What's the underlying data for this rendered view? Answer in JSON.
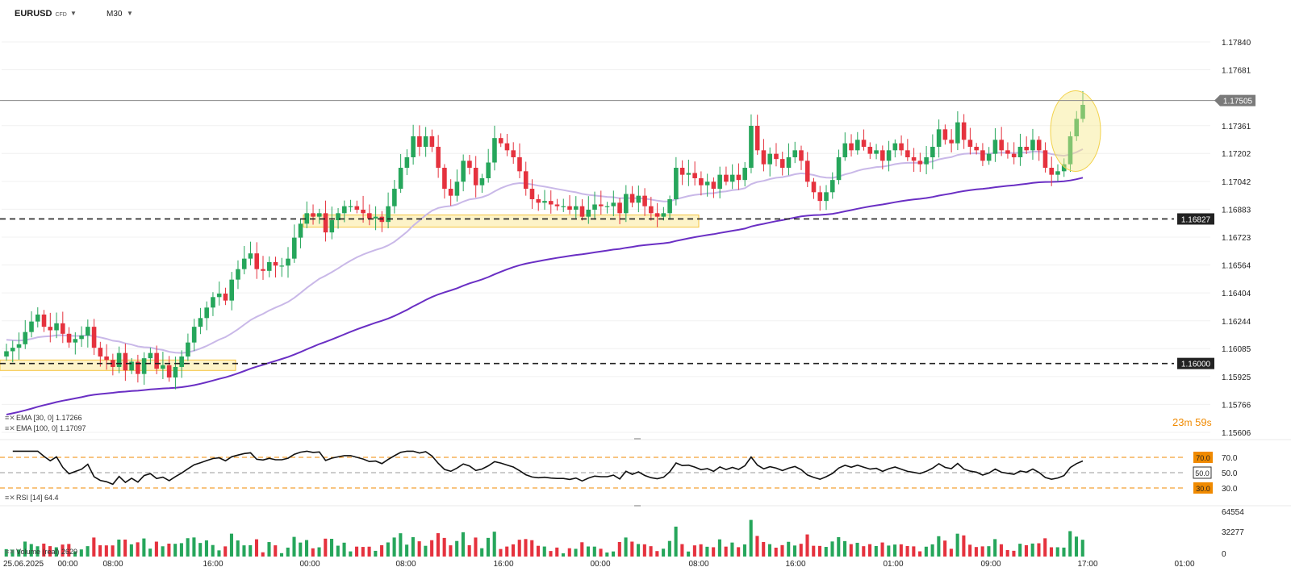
{
  "header": {
    "symbol": "EURUSD",
    "symbol_tag": "CFD",
    "timeframe": "M30"
  },
  "colors": {
    "up": "#26a65b",
    "down": "#e5323e",
    "ema30": "#c9b8e8",
    "ema100": "#6a2fc4",
    "rsi": "#111111",
    "level_box": "#f5c542",
    "highlight": "#f7e98a",
    "last_price_bg": "#7a7a7a",
    "level_label_bg": "#222222",
    "rsi_band": "#f08a00"
  },
  "indicators": {
    "ema30_label": "EMA  [30, 0]  1.17266",
    "ema100_label": "EMA  [100, 0]  1.17097",
    "rsi_label": "RSI  [14]  64.4",
    "volume_label": "Volume  (real)  2629"
  },
  "countdown": {
    "min": "23",
    "min_unit": "m",
    "sec": "59",
    "sec_unit": "s"
  },
  "chart_data": [
    {
      "type": "candlestick",
      "symbol": "EURUSD",
      "timeframe": "M30",
      "ylim": [
        1.15606,
        1.1784
      ],
      "y_ticks": [
        "1.17840",
        "1.17681",
        "1.17505",
        "1.17361",
        "1.17202",
        "1.17042",
        "1.16883",
        "1.16723",
        "1.16564",
        "1.16404",
        "1.16244",
        "1.16085",
        "1.15925",
        "1.15766",
        "1.15606"
      ],
      "x_ticks": [
        "25.06.2025",
        "00:00",
        "08:00",
        "16:00",
        "00:00",
        "08:00",
        "16:00",
        "00:00",
        "08:00",
        "16:00",
        "01:00",
        "09:00",
        "17:00",
        "01:00"
      ],
      "last_price": 1.17505,
      "levels": [
        1.16827,
        1.16
      ],
      "level_labels": [
        "1.16827",
        "1.16000"
      ],
      "support_zones": [
        {
          "from": 1.1596,
          "to": 1.1602
        },
        {
          "from": 1.1678,
          "to": 1.1685
        }
      ],
      "ohlc_close_path": [
        1.1607,
        1.1609,
        1.1611,
        1.1618,
        1.1624,
        1.1628,
        1.1621,
        1.1619,
        1.1623,
        1.1617,
        1.1612,
        1.1614,
        1.1616,
        1.1621,
        1.1609,
        1.1604,
        1.1602,
        1.1598,
        1.1606,
        1.1596,
        1.1601,
        1.1594,
        1.1603,
        1.1606,
        1.1597,
        1.1599,
        1.1592,
        1.1598,
        1.1604,
        1.1612,
        1.1621,
        1.1626,
        1.1632,
        1.1638,
        1.164,
        1.1636,
        1.1648,
        1.1654,
        1.166,
        1.1663,
        1.1654,
        1.1653,
        1.1658,
        1.1656,
        1.1656,
        1.166,
        1.1672,
        1.168,
        1.1686,
        1.1684,
        1.1686,
        1.1675,
        1.1682,
        1.1686,
        1.169,
        1.169,
        1.1688,
        1.1686,
        1.1683,
        1.1684,
        1.1681,
        1.169,
        1.17,
        1.1712,
        1.1718,
        1.173,
        1.1724,
        1.173,
        1.1724,
        1.1712,
        1.17,
        1.1696,
        1.1704,
        1.1716,
        1.1712,
        1.1702,
        1.1706,
        1.1715,
        1.1729,
        1.1726,
        1.1722,
        1.1718,
        1.171,
        1.17,
        1.1694,
        1.1692,
        1.1693,
        1.1691,
        1.169,
        1.169,
        1.1688,
        1.169,
        1.1684,
        1.1688,
        1.1691,
        1.169,
        1.169,
        1.1692,
        1.1686,
        1.1697,
        1.1692,
        1.1696,
        1.169,
        1.1686,
        1.1684,
        1.1686,
        1.1694,
        1.1712,
        1.1708,
        1.1709,
        1.1706,
        1.1702,
        1.1704,
        1.17,
        1.1708,
        1.1704,
        1.1708,
        1.1705,
        1.1712,
        1.1736,
        1.1722,
        1.1714,
        1.172,
        1.1717,
        1.1712,
        1.1718,
        1.1722,
        1.1716,
        1.1704,
        1.1698,
        1.1693,
        1.1698,
        1.1705,
        1.1718,
        1.1726,
        1.1722,
        1.1728,
        1.1724,
        1.172,
        1.1722,
        1.1716,
        1.1722,
        1.1726,
        1.1722,
        1.1718,
        1.1716,
        1.1714,
        1.1718,
        1.1724,
        1.1734,
        1.1728,
        1.1726,
        1.1738,
        1.1728,
        1.1724,
        1.1722,
        1.1716,
        1.172,
        1.1728,
        1.1722,
        1.172,
        1.1718,
        1.1724,
        1.1722,
        1.1728,
        1.1722,
        1.1712,
        1.1708,
        1.171,
        1.1714,
        1.173,
        1.174,
        1.1748
      ]
    },
    {
      "type": "line",
      "name": "RSI [14]",
      "ylim": [
        0,
        100
      ],
      "levels": [
        70.0,
        50.0,
        30.0
      ],
      "level_labels": [
        "70.0",
        "50.0",
        "30.0"
      ],
      "last": 64.4
    },
    {
      "type": "bar",
      "name": "Volume (real)",
      "y_ticks": [
        "64554",
        "32277",
        "0"
      ],
      "last": 2629
    }
  ]
}
